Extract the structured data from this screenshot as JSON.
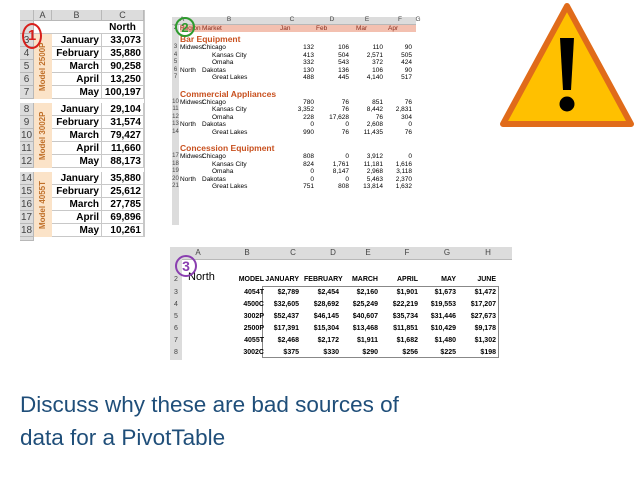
{
  "sheet1": {
    "col_headers": [
      "A",
      "B",
      "C"
    ],
    "header_row": {
      "row": "",
      "label": "North"
    },
    "rows": [
      {
        "num": "3",
        "month": "January",
        "value": "33,073"
      },
      {
        "num": "4",
        "month": "February",
        "value": "35,880"
      },
      {
        "num": "5",
        "month": "March",
        "value": "90,258"
      },
      {
        "num": "6",
        "month": "April",
        "value": "13,250"
      },
      {
        "num": "7",
        "month": "May",
        "value": "100,197"
      },
      {
        "num": "8",
        "month": "January",
        "value": "29,104"
      },
      {
        "num": "9",
        "month": "February",
        "value": "31,574"
      },
      {
        "num": "10",
        "month": "March",
        "value": "79,427"
      },
      {
        "num": "11",
        "month": "April",
        "value": "11,660"
      },
      {
        "num": "12",
        "month": "May",
        "value": "88,173"
      },
      {
        "num": "14",
        "month": "January",
        "value": "35,880"
      },
      {
        "num": "15",
        "month": "February",
        "value": "25,612"
      },
      {
        "num": "16",
        "month": "March",
        "value": "27,785"
      },
      {
        "num": "17",
        "month": "April",
        "value": "69,896"
      },
      {
        "num": "18",
        "month": "May",
        "value": "10,261"
      }
    ],
    "bands": [
      "Model 2500P",
      "Model 3002P",
      "Model 4055T"
    ],
    "badge": "1",
    "badge_color": "#d8201c"
  },
  "sheet2": {
    "col_headers": [
      "A",
      "B",
      "C",
      "D",
      "E",
      "F",
      "G"
    ],
    "header": {
      "c0": "Region",
      "c1": "Market",
      "c2": "Jan",
      "c3": "Feb",
      "c4": "Mar",
      "c5": "Apr"
    },
    "sections": [
      {
        "title": "Bar Equipment",
        "rows": [
          {
            "n": "3",
            "r": "Midwest",
            "m": "Chicago",
            "v": [
              "132",
              "106",
              "110",
              "90"
            ]
          },
          {
            "n": "4",
            "r": "",
            "m": "Kansas City",
            "v": [
              "413",
              "504",
              "2,571",
              "505"
            ]
          },
          {
            "n": "5",
            "r": "",
            "m": "Omaha",
            "v": [
              "332",
              "543",
              "372",
              "424"
            ]
          },
          {
            "n": "6",
            "r": "North",
            "m": "Dakotas",
            "v": [
              "130",
              "136",
              "106",
              "90"
            ]
          },
          {
            "n": "7",
            "r": "",
            "m": "Great Lakes",
            "v": [
              "488",
              "445",
              "4,140",
              "517"
            ]
          }
        ]
      },
      {
        "title": "Commercial Appliances",
        "rows": [
          {
            "n": "10",
            "r": "Midwest",
            "m": "Chicago",
            "v": [
              "780",
              "76",
              "851",
              "76"
            ]
          },
          {
            "n": "11",
            "r": "",
            "m": "Kansas City",
            "v": [
              "3,352",
              "76",
              "8,442",
              "2,831"
            ]
          },
          {
            "n": "12",
            "r": "",
            "m": "Omaha",
            "v": [
              "228",
              "17,628",
              "76",
              "304"
            ]
          },
          {
            "n": "13",
            "r": "North",
            "m": "Dakotas",
            "v": [
              "0",
              "0",
              "2,608",
              "0"
            ]
          },
          {
            "n": "14",
            "r": "",
            "m": "Great Lakes",
            "v": [
              "990",
              "76",
              "11,435",
              "76"
            ]
          }
        ]
      },
      {
        "title": "Concession Equipment",
        "rows": [
          {
            "n": "17",
            "r": "Midwest",
            "m": "Chicago",
            "v": [
              "808",
              "0",
              "3,912",
              "0"
            ]
          },
          {
            "n": "18",
            "r": "",
            "m": "Kansas City",
            "v": [
              "824",
              "1,761",
              "11,181",
              "1,616"
            ]
          },
          {
            "n": "19",
            "r": "",
            "m": "Omaha",
            "v": [
              "0",
              "8,147",
              "2,968",
              "3,118"
            ]
          },
          {
            "n": "20",
            "r": "North",
            "m": "Dakotas",
            "v": [
              "0",
              "0",
              "5,463",
              "2,370"
            ]
          },
          {
            "n": "21",
            "r": "",
            "m": "Great Lakes",
            "v": [
              "751",
              "808",
              "13,814",
              "1,632"
            ]
          }
        ]
      }
    ],
    "badge": "2",
    "badge_color": "#2e9b2e"
  },
  "sheet3": {
    "col_headers": [
      "A",
      "B",
      "C",
      "D",
      "E",
      "F",
      "G",
      "H"
    ],
    "title": "North",
    "columns": [
      "MODEL",
      "JANUARY",
      "FEBRUARY",
      "MARCH",
      "APRIL",
      "MAY",
      "JUNE"
    ],
    "rows": [
      {
        "n": "3",
        "cells": [
          "4054T",
          "$2,789",
          "$2,454",
          "$2,160",
          "$1,901",
          "$1,673",
          "$1,472"
        ]
      },
      {
        "n": "4",
        "cells": [
          "4500C",
          "$32,605",
          "$28,692",
          "$25,249",
          "$22,219",
          "$19,553",
          "$17,207"
        ]
      },
      {
        "n": "5",
        "cells": [
          "3002P",
          "$52,437",
          "$46,145",
          "$40,607",
          "$35,734",
          "$31,446",
          "$27,673"
        ]
      },
      {
        "n": "6",
        "cells": [
          "2500P",
          "$17,391",
          "$15,304",
          "$13,468",
          "$11,851",
          "$10,429",
          "$9,178"
        ]
      },
      {
        "n": "7",
        "cells": [
          "4055T",
          "$2,468",
          "$2,172",
          "$1,911",
          "$1,682",
          "$1,480",
          "$1,302"
        ]
      },
      {
        "n": "8",
        "cells": [
          "3002C",
          "$375",
          "$330",
          "$290",
          "$256",
          "$225",
          "$198"
        ]
      }
    ],
    "badge": "3",
    "badge_color": "#8a3fb0"
  },
  "caption": {
    "line1": "Discuss why these are bad sources of",
    "line2": "data for a PivotTable"
  },
  "colors": {
    "warning_fill": "#ffc000",
    "warning_stroke": "#e06b1a",
    "caption": "#1f4e79"
  }
}
